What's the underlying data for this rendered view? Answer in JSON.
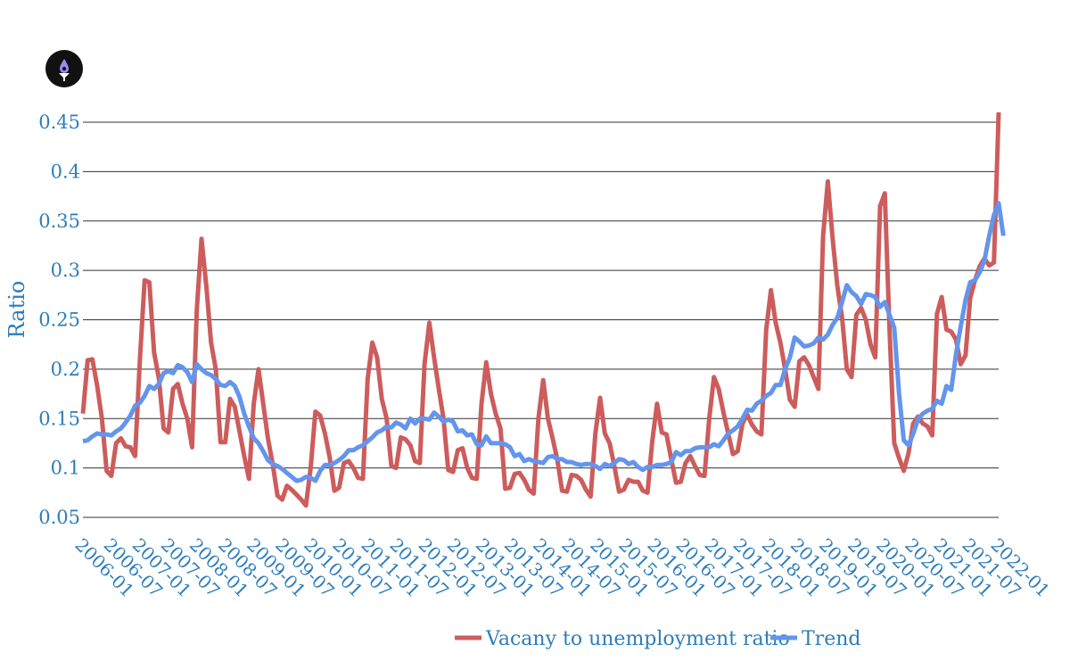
{
  "logo_icon": "logo-droplet-funnel-icon",
  "chart_data": {
    "type": "line",
    "title": "",
    "xlabel": "",
    "ylabel": "Ratio",
    "ylim": [
      0.05,
      0.45
    ],
    "y_ticks": [
      "0.05",
      "0.1",
      "0.15",
      "0.2",
      "0.25",
      "0.3",
      "0.35",
      "0.4",
      "0.45"
    ],
    "x_tick_labels": [
      "2006-01",
      "2006-07",
      "2007-01",
      "2007-07",
      "2008-01",
      "2008-07",
      "2009-01",
      "2009-07",
      "2010-01",
      "2010-07",
      "2011-01",
      "2011-07",
      "2012-01",
      "2012-07",
      "2013-01",
      "2013-07",
      "2014-01",
      "2014-07",
      "2015-01",
      "2015-07",
      "2016-01",
      "2016-07",
      "2017-01",
      "2017-07",
      "2018-01",
      "2018-07",
      "2019-01",
      "2019-07",
      "2020-01",
      "2020-07",
      "2021-01",
      "2021-07",
      "2022-01"
    ],
    "x_start": "2006-01",
    "x_end": "2022-01",
    "grid": true,
    "legend_position": "bottom",
    "series": [
      {
        "name": "Vacany to unemployment ratio",
        "color": "#cd5c5c",
        "values": [
          0.155,
          0.209,
          0.21,
          0.183,
          0.15,
          0.097,
          0.092,
          0.125,
          0.13,
          0.122,
          0.121,
          0.112,
          0.21,
          0.29,
          0.288,
          0.217,
          0.191,
          0.14,
          0.136,
          0.18,
          0.185,
          0.165,
          0.15,
          0.121,
          0.26,
          0.332,
          0.284,
          0.227,
          0.2,
          0.126,
          0.126,
          0.17,
          0.162,
          0.137,
          0.112,
          0.089,
          0.165,
          0.2,
          0.165,
          0.13,
          0.104,
          0.072,
          0.068,
          0.082,
          0.078,
          0.073,
          0.068,
          0.062,
          0.1,
          0.157,
          0.153,
          0.135,
          0.111,
          0.077,
          0.08,
          0.105,
          0.107,
          0.1,
          0.09,
          0.089,
          0.19,
          0.227,
          0.212,
          0.17,
          0.15,
          0.102,
          0.1,
          0.131,
          0.129,
          0.123,
          0.107,
          0.105,
          0.205,
          0.247,
          0.212,
          0.18,
          0.15,
          0.098,
          0.096,
          0.118,
          0.12,
          0.1,
          0.09,
          0.089,
          0.165,
          0.207,
          0.175,
          0.155,
          0.14,
          0.079,
          0.08,
          0.094,
          0.095,
          0.088,
          0.078,
          0.074,
          0.15,
          0.189,
          0.15,
          0.13,
          0.108,
          0.077,
          0.076,
          0.093,
          0.092,
          0.088,
          0.078,
          0.071,
          0.135,
          0.171,
          0.135,
          0.125,
          0.102,
          0.076,
          0.078,
          0.088,
          0.086,
          0.086,
          0.077,
          0.075,
          0.127,
          0.165,
          0.136,
          0.134,
          0.109,
          0.085,
          0.086,
          0.105,
          0.112,
          0.102,
          0.093,
          0.092,
          0.15,
          0.192,
          0.18,
          0.156,
          0.135,
          0.114,
          0.117,
          0.145,
          0.154,
          0.144,
          0.137,
          0.134,
          0.24,
          0.28,
          0.247,
          0.227,
          0.2,
          0.169,
          0.162,
          0.208,
          0.212,
          0.204,
          0.192,
          0.18,
          0.335,
          0.39,
          0.332,
          0.284,
          0.252,
          0.2,
          0.192,
          0.255,
          0.262,
          0.25,
          0.225,
          0.212,
          0.365,
          0.378,
          0.24,
          0.125,
          0.11,
          0.097,
          0.115,
          0.145,
          0.152,
          0.145,
          0.142,
          0.133,
          0.256,
          0.273,
          0.24,
          0.238,
          0.23,
          0.205,
          0.214,
          0.272,
          0.29,
          0.304,
          0.312,
          0.305,
          0.308,
          0.46
        ]
      },
      {
        "name": "Trend",
        "color": "#6495ed",
        "values": [
          0.127,
          0.128,
          0.132,
          0.135,
          0.134,
          0.134,
          0.133,
          0.137,
          0.14,
          0.146,
          0.153,
          0.163,
          0.166,
          0.173,
          0.183,
          0.18,
          0.185,
          0.196,
          0.198,
          0.196,
          0.204,
          0.202,
          0.197,
          0.187,
          0.205,
          0.2,
          0.196,
          0.194,
          0.19,
          0.184,
          0.183,
          0.187,
          0.183,
          0.172,
          0.155,
          0.142,
          0.13,
          0.125,
          0.117,
          0.108,
          0.104,
          0.102,
          0.099,
          0.095,
          0.091,
          0.087,
          0.088,
          0.091,
          0.09,
          0.087,
          0.097,
          0.103,
          0.103,
          0.105,
          0.108,
          0.112,
          0.118,
          0.118,
          0.121,
          0.123,
          0.127,
          0.131,
          0.136,
          0.138,
          0.142,
          0.141,
          0.146,
          0.144,
          0.14,
          0.15,
          0.145,
          0.15,
          0.15,
          0.149,
          0.156,
          0.152,
          0.147,
          0.149,
          0.147,
          0.137,
          0.138,
          0.133,
          0.134,
          0.124,
          0.123,
          0.132,
          0.125,
          0.125,
          0.125,
          0.124,
          0.121,
          0.112,
          0.114,
          0.107,
          0.109,
          0.107,
          0.106,
          0.105,
          0.111,
          0.112,
          0.109,
          0.109,
          0.106,
          0.106,
          0.104,
          0.103,
          0.104,
          0.104,
          0.102,
          0.099,
          0.104,
          0.102,
          0.105,
          0.109,
          0.108,
          0.104,
          0.106,
          0.101,
          0.098,
          0.101,
          0.101,
          0.103,
          0.103,
          0.104,
          0.106,
          0.116,
          0.113,
          0.117,
          0.117,
          0.12,
          0.121,
          0.121,
          0.121,
          0.124,
          0.122,
          0.128,
          0.135,
          0.138,
          0.142,
          0.15,
          0.159,
          0.158,
          0.165,
          0.168,
          0.173,
          0.176,
          0.184,
          0.184,
          0.2,
          0.212,
          0.232,
          0.228,
          0.223,
          0.224,
          0.226,
          0.232,
          0.23,
          0.235,
          0.245,
          0.252,
          0.268,
          0.285,
          0.278,
          0.274,
          0.266,
          0.276,
          0.275,
          0.273,
          0.263,
          0.268,
          0.255,
          0.242,
          0.175,
          0.128,
          0.123,
          0.135,
          0.149,
          0.155,
          0.158,
          0.16,
          0.168,
          0.165,
          0.183,
          0.179,
          0.215,
          0.243,
          0.27,
          0.288,
          0.29,
          0.298,
          0.31,
          0.335,
          0.356,
          0.368,
          0.335
        ]
      }
    ]
  }
}
